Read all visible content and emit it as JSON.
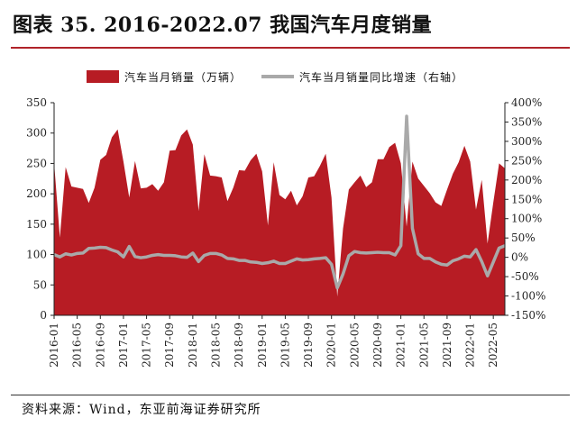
{
  "title": "图表 35. 2016-2022.07 我国汽车月度销量",
  "source": {
    "label": "资料来源：",
    "text": "Wind，东亚前海证券研究所"
  },
  "colors": {
    "area": "#b71c24",
    "line": "#a9a9a9",
    "title_rule": "#b0232a"
  },
  "chart_data": {
    "type": "area",
    "x_tick_labels": [
      "2016-01",
      "2016-05",
      "2016-09",
      "2017-01",
      "2017-05",
      "2017-09",
      "2018-01",
      "2018-05",
      "2018-09",
      "2019-01",
      "2019-05",
      "2019-09",
      "2020-01",
      "2020-05",
      "2020-09",
      "2021-01",
      "2021-05",
      "2021-09",
      "2022-01",
      "2022-05"
    ],
    "x_start": "2016-01",
    "x_end": "2022-07",
    "y_left": {
      "ticks": [
        "0",
        "50",
        "100",
        "150",
        "200",
        "250",
        "300",
        "350"
      ],
      "range": [
        0,
        350
      ]
    },
    "y_right": {
      "ticks": [
        "-150%",
        "-100%",
        "-50%",
        "0%",
        "50%",
        "100%",
        "150%",
        "200%",
        "250%",
        "300%",
        "350%",
        "400%"
      ],
      "range": [
        -150,
        400
      ]
    },
    "series": [
      {
        "name": "汽车当月销量（万辆）",
        "axis": "left",
        "render": "area",
        "values": [
          251,
          128,
          244,
          212,
          210,
          208,
          185,
          210,
          256,
          264,
          293,
          306,
          253,
          194,
          254,
          209,
          210,
          216,
          205,
          219,
          271,
          272,
          296,
          306,
          281,
          172,
          265,
          230,
          229,
          227,
          188,
          210,
          239,
          238,
          255,
          266,
          237,
          148,
          252,
          198,
          191,
          205,
          181,
          196,
          227,
          229,
          246,
          266,
          194,
          31,
          143,
          207,
          219,
          230,
          211,
          219,
          257,
          257,
          277,
          284,
          250,
          146,
          253,
          225,
          213,
          201,
          186,
          180,
          207,
          233,
          252,
          279,
          253,
          174,
          223,
          118,
          186,
          250,
          242
        ]
      },
      {
        "name": "汽车当月销量同比增速（右轴）",
        "axis": "right",
        "render": "line",
        "values": [
          7,
          1,
          9,
          6,
          10,
          11,
          23,
          24,
          26,
          25,
          19,
          14,
          1,
          28,
          2,
          -1,
          1,
          5,
          7,
          5,
          5,
          4,
          1,
          0,
          11,
          -11,
          5,
          10,
          10,
          6,
          -3,
          -4,
          -8,
          -8,
          -12,
          -13,
          -16,
          -14,
          -10,
          -16,
          -16,
          -10,
          -4,
          -7,
          -6,
          -4,
          -3,
          -1,
          -18,
          -79,
          -43,
          4,
          15,
          12,
          11,
          12,
          13,
          12,
          12,
          6,
          30,
          365,
          75,
          9,
          -3,
          -3,
          -12,
          -18,
          -20,
          -9,
          -4,
          3,
          1,
          20,
          -11,
          -48,
          -12,
          24,
          30
        ]
      }
    ]
  }
}
